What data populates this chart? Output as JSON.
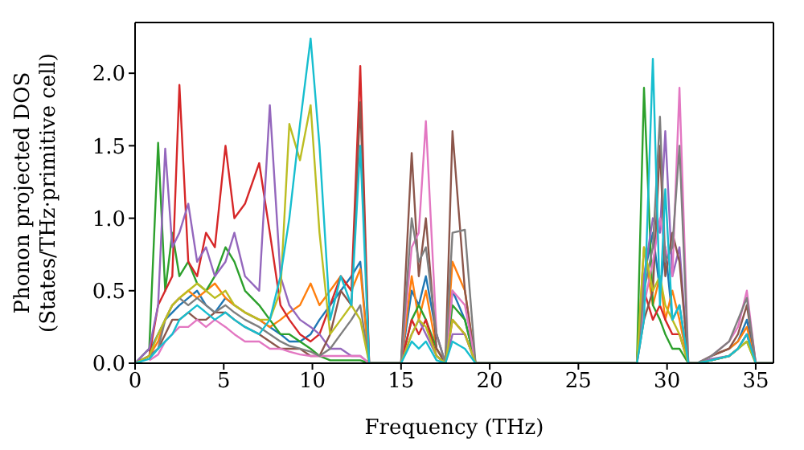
{
  "chart_data": {
    "type": "line",
    "xlabel": "Frequency (THz)",
    "ylabel": "Phonon projected DOS\n(States/THz·primitive cell)",
    "xlim": [
      0,
      36
    ],
    "xticks": [
      0,
      5,
      10,
      15,
      20,
      25,
      30,
      35
    ],
    "ylim": [
      0,
      2.35
    ],
    "yticks": [
      {
        "value": 0,
        "label": "0.0"
      },
      {
        "value": 0.5,
        "label": "0.5"
      },
      {
        "value": 1,
        "label": "1.0"
      },
      {
        "value": 1.5,
        "label": "1.5"
      },
      {
        "value": 2,
        "label": "2.0"
      }
    ],
    "x": [
      0,
      0.8,
      1.3,
      1.7,
      2.1,
      2.5,
      3,
      3.5,
      4,
      4.5,
      5.1,
      5.6,
      6.2,
      7,
      7.6,
      8.2,
      8.7,
      9.3,
      9.9,
      10.4,
      11,
      11.6,
      12.2,
      12.7,
      13.2,
      14,
      15,
      15.6,
      16,
      16.4,
      17,
      17.5,
      17.9,
      18.6,
      19.2,
      20,
      27.8,
      28.3,
      28.7,
      29.2,
      29.6,
      29.9,
      30.3,
      30.7,
      31.2,
      31.7,
      32.5,
      33.5,
      34,
      34.5,
      35,
      36
    ],
    "series": [
      {
        "color": "#1f77b4",
        "values": [
          null,
          0.08,
          0.2,
          0.3,
          0.35,
          0.4,
          0.45,
          0.5,
          0.4,
          0.35,
          0.45,
          0.4,
          0.35,
          0.3,
          0.25,
          0.2,
          0.15,
          0.15,
          0.2,
          0.3,
          0.4,
          0.5,
          0.6,
          0.7,
          0,
          0,
          0,
          0.5,
          0.4,
          0.6,
          0.2,
          0,
          0.5,
          0.3,
          0,
          0,
          0,
          0,
          0.6,
          0.9,
          0.5,
          0.8,
          0.3,
          0.4,
          0,
          0,
          0.05,
          0.1,
          0.15,
          0.3,
          0,
          0
        ]
      },
      {
        "color": "#ff7f0e",
        "values": [
          0,
          0.05,
          0.15,
          0.3,
          0.4,
          0.45,
          0.5,
          0.45,
          0.5,
          0.55,
          0.45,
          0.4,
          0.35,
          0.3,
          0.25,
          0.3,
          0.35,
          0.4,
          0.55,
          0.4,
          0.5,
          0.6,
          0.5,
          0.65,
          0,
          0,
          0,
          0.6,
          0.3,
          0.5,
          0.1,
          0,
          0.7,
          0.5,
          0,
          0,
          0,
          0,
          0.8,
          0.4,
          0.6,
          0.3,
          0.5,
          0.3,
          0,
          0,
          0.05,
          0.1,
          0.15,
          0.25,
          0,
          0
        ]
      },
      {
        "color": "#2ca02c",
        "values": [
          0,
          0.1,
          1.52,
          0.5,
          0.9,
          0.6,
          0.7,
          0.55,
          0.5,
          0.6,
          0.8,
          0.7,
          0.5,
          0.4,
          0.3,
          0.2,
          0.2,
          0.15,
          0.1,
          0.05,
          0.02,
          0.02,
          0.02,
          0.02,
          0,
          0,
          0,
          0.3,
          0.4,
          0.3,
          0.1,
          0,
          0.4,
          0.3,
          0,
          0,
          0,
          0,
          1.9,
          0.4,
          0.3,
          0.2,
          0.1,
          0.1,
          0,
          0,
          0.02,
          0.05,
          0.1,
          0.15,
          0,
          0
        ]
      },
      {
        "color": "#d62728",
        "values": [
          0,
          0.05,
          0.4,
          0.5,
          0.6,
          1.92,
          0.7,
          0.6,
          0.9,
          0.8,
          1.5,
          1.0,
          1.1,
          1.38,
          0.9,
          0.4,
          0.3,
          0.2,
          0.15,
          0.2,
          0.4,
          0.6,
          0.5,
          2.05,
          0,
          0,
          0,
          0.3,
          0.2,
          0.3,
          0.05,
          0,
          0.3,
          0.2,
          0,
          0,
          0,
          0,
          0.5,
          0.3,
          0.4,
          0.3,
          0.2,
          0.2,
          0,
          0,
          0.02,
          0.05,
          0.1,
          0.2,
          0,
          0
        ]
      },
      {
        "color": "#9467bd",
        "values": [
          0,
          0.1,
          0.4,
          1.48,
          0.8,
          0.9,
          1.1,
          0.7,
          0.8,
          0.6,
          0.7,
          0.9,
          0.6,
          0.5,
          1.78,
          0.6,
          0.4,
          0.3,
          0.25,
          0.2,
          0.1,
          0.1,
          0.05,
          0.05,
          0,
          0,
          0,
          0.2,
          0.3,
          0.2,
          0.05,
          0,
          0.2,
          0.2,
          0,
          0,
          0,
          0,
          0.6,
          1.0,
          0.9,
          1.6,
          0.6,
          0.8,
          0,
          0,
          0.03,
          0.05,
          0.1,
          0.2,
          0,
          0
        ]
      },
      {
        "color": "#8c564b",
        "values": [
          0,
          0.05,
          0.1,
          0.2,
          0.3,
          0.3,
          0.35,
          0.3,
          0.3,
          0.35,
          0.35,
          0.3,
          0.25,
          0.2,
          0.15,
          0.1,
          0.1,
          0.1,
          0.05,
          0.05,
          0.2,
          0.5,
          0.4,
          1.8,
          0,
          0,
          0,
          1.45,
          0.6,
          1.0,
          0.1,
          0,
          1.6,
          0.5,
          0,
          0,
          0,
          0,
          0.3,
          0.5,
          1.5,
          0.6,
          0.9,
          0.7,
          0,
          0,
          0.05,
          0.1,
          0.2,
          0.4,
          0,
          0
        ]
      },
      {
        "color": "#e377c2",
        "values": [
          null,
          0.02,
          0.06,
          0.15,
          0.2,
          0.25,
          0.25,
          0.3,
          0.25,
          0.3,
          0.25,
          0.2,
          0.15,
          0.15,
          0.1,
          0.1,
          0.08,
          0.06,
          0.05,
          0.05,
          0.05,
          0.05,
          0.05,
          0.05,
          0,
          0,
          0,
          0.8,
          0.9,
          1.67,
          0.2,
          0,
          0.5,
          0.4,
          0,
          0,
          0,
          0,
          0.4,
          0.7,
          1.0,
          0.8,
          0.6,
          1.9,
          0,
          0,
          0.05,
          0.15,
          0.25,
          0.5,
          0,
          0
        ]
      },
      {
        "color": "#7f7f7f",
        "values": [
          0,
          0.05,
          0.1,
          0.3,
          0.4,
          0.45,
          0.4,
          0.45,
          0.4,
          0.35,
          0.4,
          0.35,
          0.3,
          0.25,
          0.2,
          0.15,
          0.12,
          0.1,
          0.08,
          0.05,
          0.1,
          0.2,
          0.3,
          0.4,
          0,
          0,
          0,
          1.0,
          0.7,
          0.8,
          0.2,
          0,
          0.9,
          0.92,
          0,
          0,
          0,
          0,
          0.5,
          0.8,
          1.7,
          0.7,
          0.8,
          1.5,
          0,
          0,
          0.05,
          0.15,
          0.3,
          0.45,
          0,
          0
        ]
      },
      {
        "color": "#bcbd22",
        "values": [
          0,
          0.05,
          0.2,
          0.3,
          0.4,
          0.45,
          0.5,
          0.55,
          0.5,
          0.45,
          0.5,
          0.4,
          0.35,
          0.3,
          0.3,
          0.5,
          1.65,
          1.4,
          1.78,
          0.9,
          0.2,
          0.3,
          0.4,
          0.3,
          0,
          0,
          0,
          0.2,
          0.3,
          0.25,
          0.05,
          0,
          0.3,
          0.2,
          0,
          0,
          0,
          0,
          0.8,
          0.5,
          0.6,
          0.4,
          0.3,
          0.2,
          0,
          0,
          0.02,
          0.05,
          0.1,
          0.15,
          0,
          0
        ]
      },
      {
        "color": "#17becf",
        "values": [
          0,
          0.03,
          0.1,
          0.15,
          0.2,
          0.3,
          0.35,
          0.4,
          0.35,
          0.3,
          0.35,
          0.3,
          0.25,
          0.2,
          0.3,
          0.6,
          1.0,
          1.65,
          2.24,
          1.5,
          0.3,
          0.6,
          0.4,
          1.5,
          0,
          0,
          0,
          0.15,
          0.1,
          0.15,
          0.02,
          0,
          0.15,
          0.1,
          0,
          0,
          0,
          0,
          0.3,
          2.1,
          0.4,
          1.2,
          0.3,
          0.4,
          0,
          0,
          0.02,
          0.05,
          0.1,
          0.2,
          0,
          0
        ]
      }
    ]
  }
}
